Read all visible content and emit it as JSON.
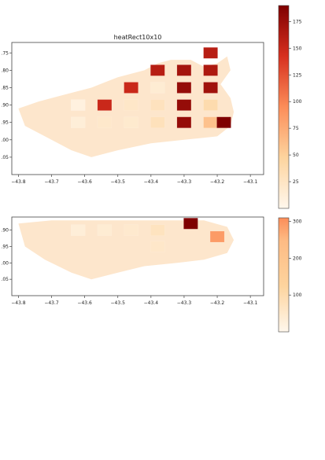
{
  "chart_data": [
    {
      "type": "heatmap",
      "title": "heatRect10x10",
      "xlabel": "",
      "ylabel": "",
      "x_ticks": [
        "−43.8",
        "−43.7",
        "−43.6",
        "−43.5",
        "−43.4",
        "−43.3",
        "−43.2",
        "−43.1"
      ],
      "x_tick_values": [
        -43.8,
        -43.7,
        -43.6,
        -43.5,
        -43.4,
        -43.3,
        -43.2,
        -43.1
      ],
      "y_ticks": [
        ".75",
        ".80",
        ".85",
        ".90",
        ".95",
        ".00",
        ".05"
      ],
      "y_tick_values": [
        -22.75,
        -22.8,
        -22.85,
        -22.9,
        -22.95,
        -23.0,
        -23.05
      ],
      "xlim": [
        -43.82,
        -43.06
      ],
      "ylim": [
        -23.1,
        -22.72
      ],
      "colormap": "OrRd",
      "colorbar": {
        "ticks": [
          25,
          50,
          75,
          100,
          125,
          150,
          175
        ],
        "range": [
          0,
          190
        ]
      },
      "cells": [
        {
          "lon": -43.62,
          "lat": -22.9,
          "value": 8
        },
        {
          "lon": -43.54,
          "lat": -22.9,
          "value": 150
        },
        {
          "lon": -43.46,
          "lat": -22.9,
          "value": 22
        },
        {
          "lon": -43.38,
          "lat": -22.9,
          "value": 28
        },
        {
          "lon": -43.3,
          "lat": -22.9,
          "value": 178
        },
        {
          "lon": -43.22,
          "lat": -22.9,
          "value": 38
        },
        {
          "lon": -43.46,
          "lat": -22.85,
          "value": 150
        },
        {
          "lon": -43.38,
          "lat": -22.85,
          "value": 15
        },
        {
          "lon": -43.3,
          "lat": -22.85,
          "value": 178
        },
        {
          "lon": -43.22,
          "lat": -22.85,
          "value": 172
        },
        {
          "lon": -43.3,
          "lat": -22.8,
          "value": 170
        },
        {
          "lon": -43.38,
          "lat": -22.8,
          "value": 160
        },
        {
          "lon": -43.22,
          "lat": -22.8,
          "value": 165
        },
        {
          "lon": -43.3,
          "lat": -22.95,
          "value": 178
        },
        {
          "lon": -43.22,
          "lat": -22.95,
          "value": 60
        },
        {
          "lon": -43.18,
          "lat": -22.95,
          "value": 190
        },
        {
          "lon": -43.38,
          "lat": -22.95,
          "value": 30
        },
        {
          "lon": -43.62,
          "lat": -22.95,
          "value": 12
        },
        {
          "lon": -43.54,
          "lat": -22.95,
          "value": 20
        },
        {
          "lon": -43.46,
          "lat": -22.95,
          "value": 18
        },
        {
          "lon": -43.22,
          "lat": -22.75,
          "value": 160
        }
      ]
    },
    {
      "type": "heatmap",
      "title": "",
      "xlabel": "",
      "ylabel": "",
      "x_ticks": [
        "−43.8",
        "−43.7",
        "−43.6",
        "−43.5",
        "−43.4",
        "−43.3",
        "−43.2",
        "−43.1"
      ],
      "x_tick_values": [
        -43.8,
        -43.7,
        -43.6,
        -43.5,
        -43.4,
        -43.3,
        -43.2,
        -43.1
      ],
      "y_ticks": [
        ".90",
        ".95",
        ".00",
        ".05"
      ],
      "y_tick_values": [
        -22.9,
        -22.95,
        -23.0,
        -23.05
      ],
      "xlim": [
        -43.82,
        -43.06
      ],
      "ylim": [
        -23.1,
        -22.86
      ],
      "colormap": "OrRd",
      "colorbar": {
        "ticks": [
          100,
          200,
          300
        ],
        "range": [
          0,
          310
        ]
      },
      "cells": [
        {
          "lon": -43.28,
          "lat": -22.88,
          "value": 310
        },
        {
          "lon": -43.2,
          "lat": -22.92,
          "value": 140
        },
        {
          "lon": -43.38,
          "lat": -22.9,
          "value": 45
        },
        {
          "lon": -43.46,
          "lat": -22.9,
          "value": 30
        },
        {
          "lon": -43.54,
          "lat": -22.9,
          "value": 25
        },
        {
          "lon": -43.62,
          "lat": -22.9,
          "value": 20
        },
        {
          "lon": -43.38,
          "lat": -22.95,
          "value": 35
        }
      ]
    }
  ]
}
